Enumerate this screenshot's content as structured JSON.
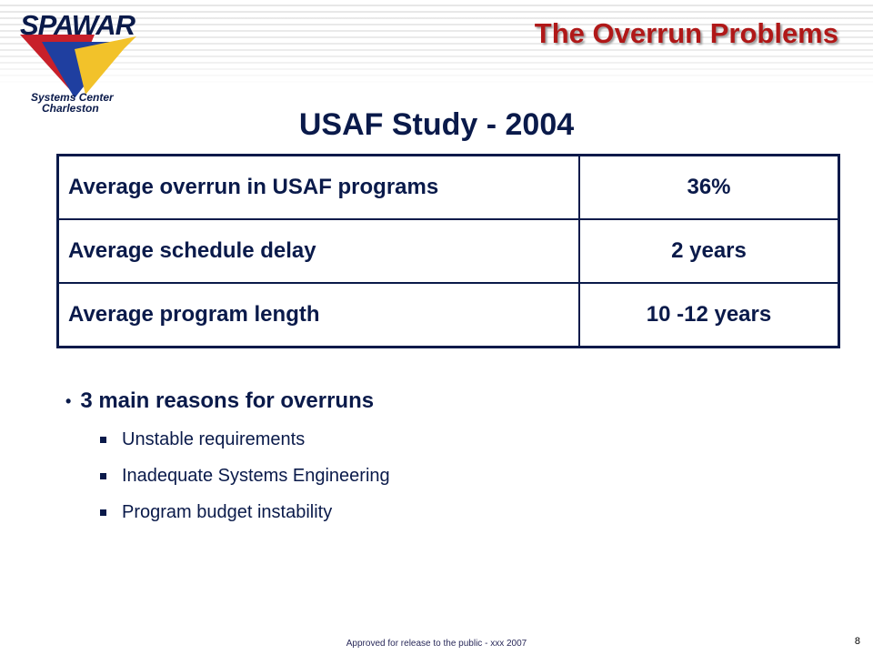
{
  "header": {
    "logo": {
      "wordmark": "SPAWAR",
      "subtitle_line1": "Systems Center",
      "subtitle_line2": "Charleston"
    },
    "title": "The Overrun Problems",
    "title_color": "#b01818"
  },
  "study": {
    "heading": "USAF Study - 2004",
    "rows": [
      {
        "label": "Average overrun in USAF programs",
        "value": "36%"
      },
      {
        "label": "Average schedule delay",
        "value": "2 years"
      },
      {
        "label": "Average program length",
        "value": "10 -12 years"
      }
    ]
  },
  "bullets": {
    "main": "3 main reasons for overruns",
    "sub": [
      "Unstable requirements",
      "Inadequate Systems Engineering",
      "Program budget instability"
    ]
  },
  "footer": {
    "text": "Approved for release to the public -  xxx 2007",
    "page_number": "8"
  },
  "colors": {
    "text_navy": "#0a1a4a",
    "logo_red": "#c8202a",
    "logo_blue": "#1f3fa0",
    "logo_yellow": "#f2c22a"
  }
}
